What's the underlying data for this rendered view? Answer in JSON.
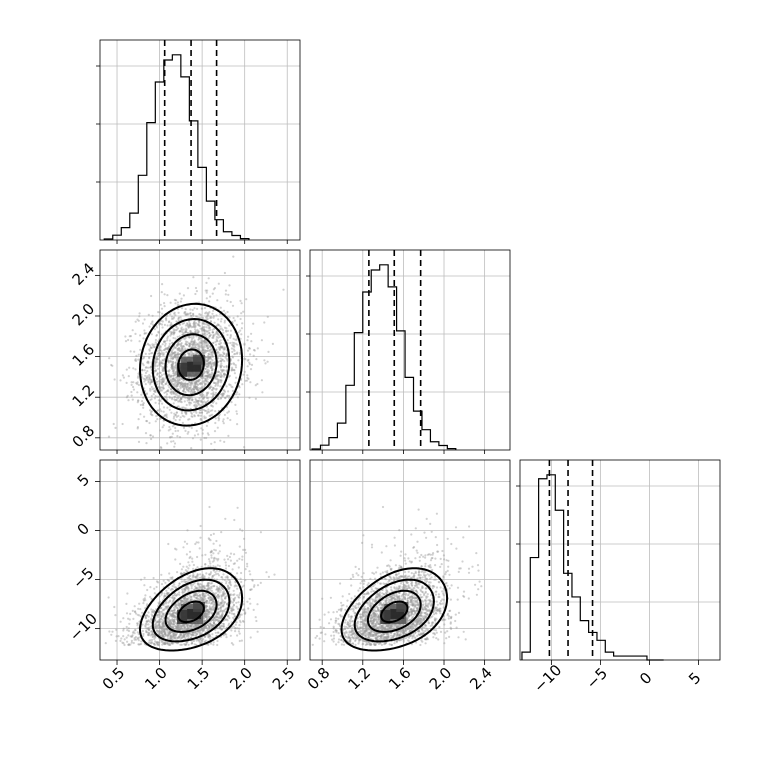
{
  "chart_data": {
    "type": "corner",
    "title": "",
    "parameters": [
      {
        "range": [
          0.3,
          2.65
        ],
        "ticks": [
          0.5,
          1.0,
          1.5,
          2.0,
          2.5
        ],
        "tick_labels": [
          "0.5",
          "1.0",
          "1.5",
          "2.0",
          "2.5"
        ]
      },
      {
        "range": [
          0.68,
          2.65
        ],
        "ticks": [
          0.8,
          1.2,
          1.6,
          2.0,
          2.4
        ],
        "tick_labels": [
          "0.8",
          "1.2",
          "1.6",
          "2.0",
          "2.4"
        ]
      },
      {
        "range": [
          -13.2,
          7.2
        ],
        "ticks": [
          -10,
          -5,
          0,
          5
        ],
        "tick_labels": [
          "−10",
          "−5",
          "0",
          "5"
        ]
      }
    ],
    "histograms": [
      {
        "bins_start": 0.35,
        "bin_width": 0.1,
        "counts": [
          0.3,
          1.4,
          3.6,
          7.8,
          18.8,
          34.1,
          45.9,
          52.3,
          53.8,
          47.4,
          34.6,
          21.1,
          11.3,
          5.9,
          2.4,
          1.3,
          0.4
        ],
        "quantiles": [
          1.06,
          1.37,
          1.67
        ]
      },
      {
        "bins_start": 0.7,
        "bin_width": 0.0833,
        "counts": [
          0.3,
          1.4,
          3.6,
          7.8,
          18.8,
          34.1,
          45.9,
          52.3,
          53.8,
          47.4,
          34.6,
          21.1,
          11.3,
          5.9,
          2.4,
          1.3,
          0.4
        ],
        "quantiles": [
          1.26,
          1.51,
          1.77
        ]
      },
      {
        "bins_start": -13.0,
        "bin_width": 0.85,
        "counts": [
          2,
          26,
          46,
          47,
          38,
          22,
          16,
          10,
          7,
          5,
          2,
          1,
          1,
          1,
          1,
          0,
          0
        ],
        "quantiles": [
          -10.2,
          -8.3,
          -5.8
        ]
      }
    ],
    "joint": [
      {
        "row": 1,
        "col": 0,
        "mean": [
          1.37,
          1.52
        ],
        "sd": [
          0.3,
          0.3
        ],
        "rho": 0.08
      },
      {
        "row": 2,
        "col": 0,
        "mean": [
          1.37,
          -8.3
        ],
        "sd": [
          0.3,
          2.1
        ],
        "rho": 0.38,
        "skew": 0.35
      },
      {
        "row": 2,
        "col": 1,
        "mean": [
          1.51,
          -8.3
        ],
        "sd": [
          0.26,
          2.1
        ],
        "rho": 0.38,
        "skew": 0.35
      }
    ],
    "grid": true,
    "quantile_style": "dashed"
  }
}
